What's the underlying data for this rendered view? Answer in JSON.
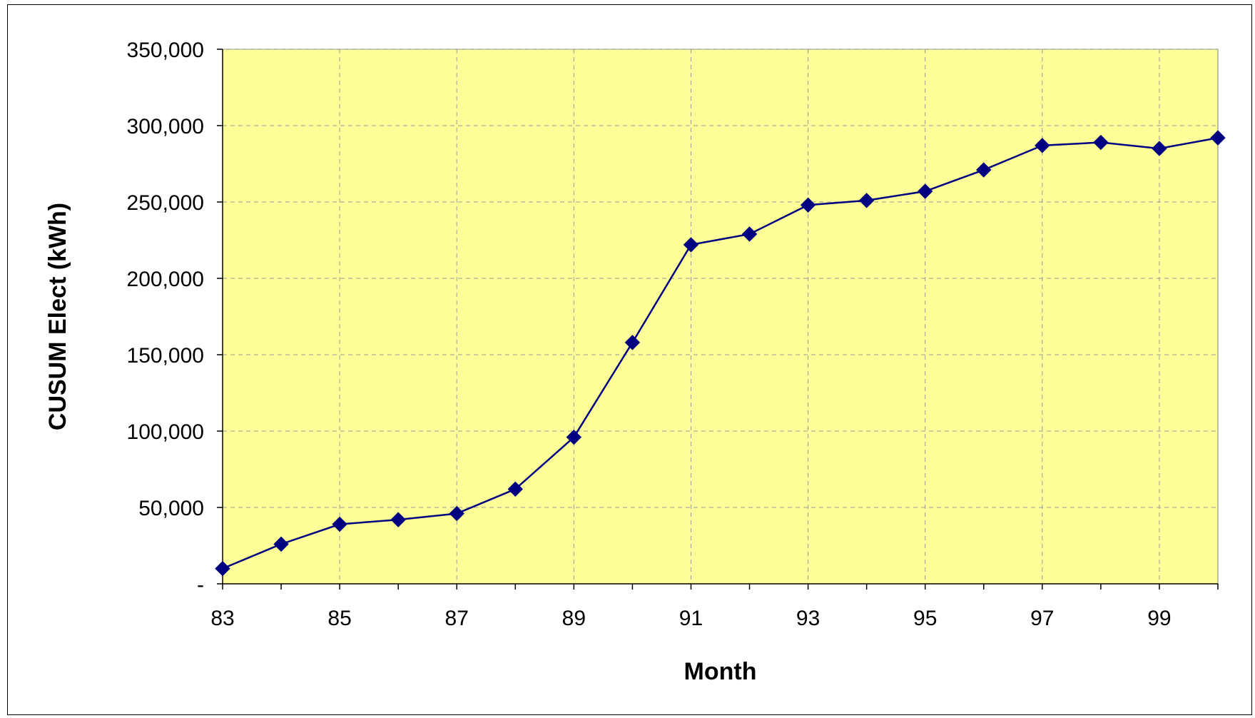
{
  "chart_data": {
    "type": "line",
    "title": "",
    "xlabel": "Month",
    "ylabel": "CUSUM Elect (kWh)",
    "x": [
      83,
      84,
      85,
      86,
      87,
      88,
      89,
      90,
      91,
      92,
      93,
      94,
      95,
      96,
      97,
      98,
      99,
      100
    ],
    "series": [
      {
        "name": "",
        "values": [
          10000,
          26000,
          39000,
          42000,
          46000,
          62000,
          96000,
          158000,
          222000,
          229000,
          248000,
          251000,
          257000,
          271000,
          287000,
          289000,
          285000,
          292000
        ]
      }
    ],
    "xlim": [
      83,
      100
    ],
    "ylim": [
      0,
      350000
    ],
    "x_ticks": [
      83,
      85,
      87,
      89,
      91,
      93,
      95,
      97,
      99
    ],
    "x_tick_labels": [
      "83",
      "85",
      "87",
      "89",
      "91",
      "93",
      "95",
      "97",
      "99"
    ],
    "y_ticks": [
      0,
      50000,
      100000,
      150000,
      200000,
      250000,
      300000,
      350000
    ],
    "y_tick_labels": [
      "-",
      "50,000",
      "100,000",
      "150,000",
      "200,000",
      "250,000",
      "300,000",
      "350,000"
    ],
    "grid": true,
    "legend": "none",
    "colors": {
      "plot_background": "#FFFF99",
      "series_line": "#000080",
      "marker": "#000080",
      "grid": "#999999"
    },
    "marker": "diamond"
  }
}
